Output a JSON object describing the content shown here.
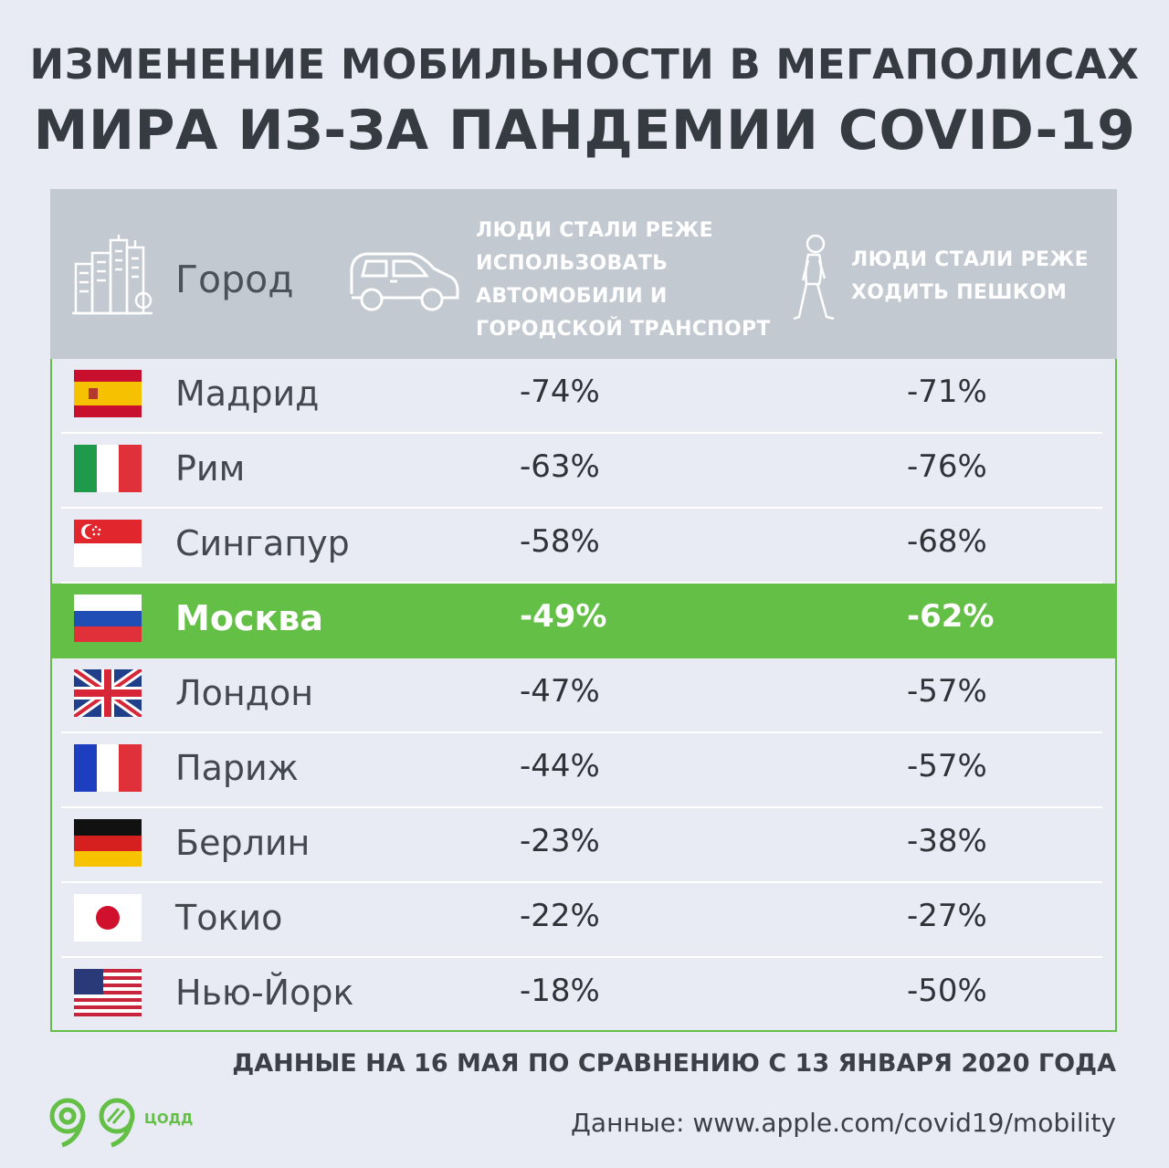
{
  "title": {
    "line1": "ИЗМЕНЕНИЕ МОБИЛЬНОСТИ В МЕГАПОЛИСАХ",
    "line2": "МИРА ИЗ-ЗА ПАНДЕМИИ COVID-19"
  },
  "header": {
    "city": "Город",
    "car_lines": [
      "ЛЮДИ СТАЛИ РЕЖЕ",
      "ИСПОЛЬЗОВАТЬ",
      "АВТОМОБИЛИ И",
      "ГОРОДСКОЙ ТРАНСПОРТ"
    ],
    "walk_lines": [
      "ЛЮДИ СТАЛИ РЕЖЕ",
      "ХОДИТЬ ПЕШКОМ"
    ]
  },
  "chart_data": {
    "type": "table",
    "columns": [
      "Город",
      "ЛЮДИ СТАЛИ РЕЖЕ ИСПОЛЬЗОВАТЬ АВТОМОБИЛИ И ГОРОДСКОЙ ТРАНСПОРТ",
      "ЛЮДИ СТАЛИ РЕЖЕ ХОДИТЬ ПЕШКОМ"
    ],
    "highlight": "Москва",
    "rows": [
      {
        "city": "Мадрид",
        "flag": "spain-flag-icon",
        "transport": "-74%",
        "walking": "-71%"
      },
      {
        "city": "Рим",
        "flag": "italy-flag-icon",
        "transport": "-63%",
        "walking": "-76%"
      },
      {
        "city": "Сингапур",
        "flag": "singapore-flag-icon",
        "transport": "-58%",
        "walking": "-68%"
      },
      {
        "city": "Москва",
        "flag": "russia-flag-icon",
        "transport": "-49%",
        "walking": "-62%"
      },
      {
        "city": "Лондон",
        "flag": "uk-flag-icon",
        "transport": "-47%",
        "walking": "-57%"
      },
      {
        "city": "Париж",
        "flag": "france-flag-icon",
        "transport": "-44%",
        "walking": "-57%"
      },
      {
        "city": "Берлин",
        "flag": "germany-flag-icon",
        "transport": "-23%",
        "walking": "-38%"
      },
      {
        "city": "Токио",
        "flag": "japan-flag-icon",
        "transport": "-22%",
        "walking": "-27%"
      },
      {
        "city": "Нью-Йорк",
        "flag": "usa-flag-icon",
        "transport": "-18%",
        "walking": "-50%"
      }
    ]
  },
  "colors": {
    "accent": "#63bf45",
    "header_bg": "#c3c9d0",
    "background": "#e8ebf3"
  },
  "footer": {
    "note": "ДАННЫЕ НА 16 МАЯ ПО СРАВНЕНИЮ С 13 ЯНВАРЯ 2020 ГОДА",
    "source": "Данные: www.apple.com/covid19/mobility",
    "logo_text": "ЦОДД"
  }
}
